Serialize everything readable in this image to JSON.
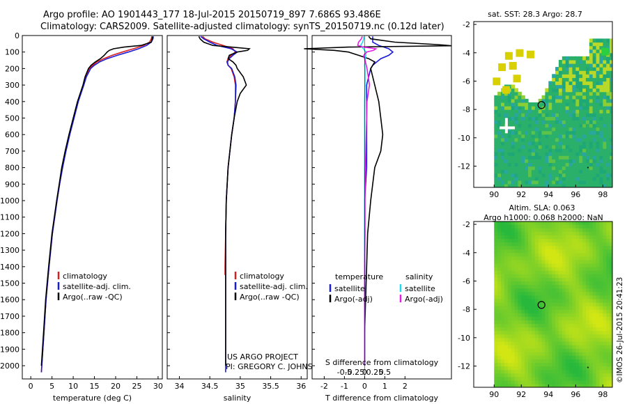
{
  "header": {
    "title_line1": "Argo profile: AO 1901443_177 18-Jul-2015 20150719_897 7.686S 93.486E",
    "title_line2": "Climatology: CARS2009. Satellite-adjusted climatology: synTS_20150719.nc (0.12d later)"
  },
  "colors": {
    "climatology": "#d62020",
    "satellite": "#1a1adb",
    "argo": "#000000",
    "satellite_sal": "#22d8f0",
    "argo_sal": "#e020e0"
  },
  "chart_data": [
    {
      "type": "line",
      "id": "temperature",
      "xlabel": "temperature (deg C)",
      "ylabel": "",
      "xlim": [
        -2,
        31
      ],
      "ylim": [
        2080,
        0
      ],
      "xticks": [
        "0",
        "5",
        "10",
        "15",
        "20",
        "25",
        "30"
      ],
      "xtick_values": [
        0,
        5,
        10,
        15,
        20,
        25,
        30
      ],
      "yticks": [
        "0",
        "100",
        "200",
        "300",
        "400",
        "500",
        "600",
        "700",
        "800",
        "900",
        "1000",
        "1100",
        "1200",
        "1300",
        "1400",
        "1500",
        "1600",
        "1700",
        "1800",
        "1900",
        "2000"
      ],
      "ytick_values": [
        0,
        100,
        200,
        300,
        400,
        500,
        600,
        700,
        800,
        900,
        1000,
        1100,
        1200,
        1300,
        1400,
        1500,
        1600,
        1700,
        1800,
        1900,
        2000
      ],
      "legend": [
        "climatology",
        "satellite-adj. clim.",
        "Argo(..raw -QC)"
      ],
      "series": [
        {
          "name": "climatology",
          "color_key": "climatology",
          "depth": [
            5,
            20,
            40,
            60,
            80,
            100,
            120,
            140,
            160,
            180,
            200,
            250,
            300,
            400,
            500,
            600,
            700,
            800,
            900,
            1000,
            1200,
            1400,
            1600,
            1800,
            2000,
            2040
          ],
          "values": [
            28.5,
            28.4,
            28.0,
            26.6,
            24.2,
            21.6,
            19.2,
            17.2,
            15.6,
            14.6,
            13.8,
            12.9,
            12.4,
            11.1,
            10.1,
            9.1,
            8.2,
            7.4,
            6.8,
            6.2,
            5.1,
            4.3,
            3.6,
            3.1,
            2.6,
            2.5
          ]
        },
        {
          "name": "satellite-adj. clim.",
          "color_key": "satellite",
          "depth": [
            5,
            20,
            40,
            60,
            80,
            100,
            120,
            140,
            160,
            180,
            200,
            250,
            300,
            400,
            500,
            600,
            700,
            800,
            900,
            1000,
            1200,
            1400,
            1600,
            1800,
            2000,
            2040
          ],
          "values": [
            28.9,
            28.8,
            28.4,
            27.3,
            25.4,
            23.0,
            20.4,
            18.0,
            16.2,
            15.0,
            14.1,
            13.1,
            12.5,
            11.2,
            10.2,
            9.2,
            8.3,
            7.5,
            6.8,
            6.2,
            5.1,
            4.3,
            3.6,
            3.1,
            2.6,
            2.5
          ]
        },
        {
          "name": "Argo(..raw -QC)",
          "color_key": "argo",
          "depth": [
            5,
            20,
            40,
            60,
            70,
            80,
            90,
            100,
            120,
            140,
            160,
            180,
            200,
            250,
            300,
            400,
            500,
            600,
            700,
            800,
            900,
            1000,
            1200,
            1400,
            1600,
            1800,
            2000
          ],
          "values": [
            28.7,
            28.6,
            28.4,
            26.0,
            22.0,
            19.5,
            18.5,
            18.0,
            17.3,
            16.4,
            15.2,
            14.2,
            13.6,
            12.8,
            12.3,
            11.0,
            10.0,
            9.0,
            8.1,
            7.3,
            6.7,
            6.1,
            5.0,
            4.2,
            3.5,
            3.0,
            2.5
          ]
        }
      ]
    },
    {
      "type": "line",
      "id": "salinity",
      "xlabel": "salinity",
      "xlim": [
        33.8,
        36.1
      ],
      "ylim": [
        2080,
        0
      ],
      "xticks": [
        "34",
        "34.5",
        "35",
        "35.5",
        "36"
      ],
      "xtick_values": [
        34,
        34.5,
        35,
        35.5,
        36
      ],
      "legend": [
        "climatology",
        "satellite-adj. clim.",
        "Argo(..raw -QC)"
      ],
      "annotations": [
        "US ARGO PROJECT",
        "PI: GREGORY C. JOHNSON"
      ],
      "series": [
        {
          "name": "climatology",
          "color_key": "climatology",
          "depth": [
            5,
            20,
            40,
            60,
            80,
            100,
            120,
            140,
            160,
            180,
            200,
            250,
            300,
            400,
            500,
            600,
            800,
            1000,
            1200,
            1400,
            1450
          ],
          "values": [
            34.38,
            34.42,
            34.55,
            34.72,
            34.88,
            34.92,
            34.85,
            34.8,
            34.78,
            34.8,
            34.85,
            34.9,
            34.92,
            34.92,
            34.9,
            34.86,
            34.8,
            34.77,
            34.76,
            34.75,
            34.75
          ]
        },
        {
          "name": "satellite-adj. clim.",
          "color_key": "satellite",
          "depth": [
            5,
            20,
            40,
            60,
            80,
            100,
            120,
            140,
            160,
            180,
            200,
            250,
            300,
            400,
            500,
            600,
            800,
            1000,
            1200,
            1400,
            1600,
            1800,
            2000,
            2040
          ],
          "values": [
            34.35,
            34.4,
            34.5,
            34.62,
            34.85,
            34.95,
            34.88,
            34.82,
            34.79,
            34.8,
            34.86,
            34.91,
            34.93,
            34.92,
            34.9,
            34.86,
            34.8,
            34.77,
            34.76,
            34.76,
            34.76,
            34.76,
            34.76,
            34.76
          ]
        },
        {
          "name": "Argo(..raw -QC)",
          "color_key": "argo",
          "depth": [
            5,
            20,
            40,
            60,
            70,
            80,
            90,
            100,
            120,
            140,
            160,
            180,
            200,
            250,
            300,
            350,
            400,
            500,
            600,
            800,
            1000,
            1200,
            1400,
            1600,
            1800,
            2000
          ],
          "values": [
            34.32,
            34.34,
            34.4,
            34.55,
            34.85,
            35.15,
            35.12,
            34.95,
            34.82,
            34.8,
            34.88,
            34.93,
            34.95,
            35.05,
            35.1,
            35.0,
            34.95,
            34.9,
            34.86,
            34.8,
            34.77,
            34.76,
            34.76,
            34.76,
            34.76,
            34.76
          ]
        }
      ]
    },
    {
      "type": "line",
      "id": "difference",
      "xlabel": "T difference from climatology",
      "xlabel_top": "S difference from climatology",
      "xlim": [
        -2.6,
        4.3
      ],
      "ylim": [
        2080,
        0
      ],
      "xticks": [
        "-2",
        "-1",
        "0",
        "1",
        "2"
      ],
      "xtick_values": [
        -2,
        -1,
        0,
        1,
        2
      ],
      "sticks": [
        "-0.5",
        "-0.25",
        "0",
        "0.25",
        "0.5"
      ],
      "stick_values": [
        -0.5,
        -0.25,
        0,
        0.25,
        0.5
      ],
      "legend_temperature": {
        "heading": "temperature",
        "items": [
          "satellite",
          "Argo(-adj)"
        ]
      },
      "legend_salinity": {
        "heading": "salinity",
        "items": [
          "satellite",
          "Argo(-adj)"
        ]
      },
      "series": [
        {
          "name": "T satellite",
          "color_key": "satellite",
          "depth": [
            5,
            20,
            40,
            60,
            80,
            100,
            120,
            140,
            160,
            180,
            200,
            300,
            400,
            600,
            800,
            1000,
            1400,
            2000
          ],
          "values": [
            0.4,
            0.4,
            0.4,
            0.7,
            1.2,
            1.4,
            1.2,
            0.8,
            0.6,
            0.4,
            0.3,
            0.1,
            0.1,
            0.1,
            0.1,
            0.0,
            0.0,
            0.0
          ]
        },
        {
          "name": "T Argo(-adj)",
          "color_key": "argo",
          "depth": [
            5,
            20,
            40,
            55,
            62,
            70,
            80,
            90,
            100,
            120,
            140,
            160,
            180,
            200,
            300,
            400,
            500,
            600,
            700,
            800,
            900,
            1000,
            1200,
            1400,
            1600,
            1800,
            2000
          ],
          "values": [
            0.2,
            0.3,
            1.5,
            3.6,
            4.3,
            -0.8,
            -3.0,
            -1.5,
            -0.8,
            -0.3,
            0.2,
            0.5,
            0.4,
            0.3,
            0.5,
            0.7,
            0.8,
            0.9,
            0.8,
            0.5,
            0.4,
            0.3,
            0.15,
            0.1,
            0.05,
            0.0,
            0.0
          ]
        },
        {
          "name": "S satellite",
          "color_key": "satellite_sal",
          "depth": [
            5,
            20,
            40,
            60,
            80,
            100,
            120,
            140,
            160,
            180,
            200,
            300,
            400,
            600,
            800,
            1000,
            1400,
            2000
          ],
          "values": [
            -0.03,
            -0.02,
            -0.05,
            -0.1,
            -0.03,
            0.03,
            0.03,
            0.02,
            0.01,
            0.0,
            0.01,
            0.01,
            0.0,
            0.0,
            0.0,
            0.0,
            0.0,
            0.0
          ]
        },
        {
          "name": "S Argo(-adj)",
          "color_key": "argo_sal",
          "depth": [
            5,
            20,
            40,
            60,
            70,
            80,
            90,
            100,
            120,
            140,
            160,
            180,
            200,
            250,
            300,
            400,
            500,
            600,
            700,
            800,
            1000,
            1200,
            1400,
            1600,
            2000
          ],
          "values": [
            -0.06,
            -0.08,
            -0.15,
            -0.17,
            -0.03,
            0.28,
            0.22,
            0.05,
            -0.02,
            0.0,
            0.02,
            0.04,
            0.06,
            0.09,
            0.12,
            0.06,
            0.05,
            0.04,
            0.03,
            0.02,
            0.01,
            0.01,
            0.0,
            0.0,
            0.0
          ]
        }
      ]
    },
    {
      "type": "heatmap",
      "id": "sst_map",
      "title": "sat. SST: 28.3  Argo: 28.7",
      "xlim": [
        88.5,
        98.7
      ],
      "ylim": [
        -13.5,
        -1.8
      ],
      "xticks": [
        "90",
        "92",
        "94",
        "96",
        "98"
      ],
      "xtick_values": [
        90,
        92,
        94,
        96,
        98
      ],
      "yticks": [
        "-2",
        "-4",
        "-6",
        "-8",
        "-10",
        "-12"
      ],
      "ytick_values": [
        -2,
        -4,
        -6,
        -8,
        -10,
        -12
      ],
      "marker": {
        "lon": 93.486,
        "lat": -7.686
      }
    },
    {
      "type": "heatmap",
      "id": "sla_map",
      "title": "Altim. SLA: 0.063",
      "subtitle": "Argo h1000: 0.068 h2000: NaN",
      "xlim": [
        88.5,
        98.7
      ],
      "ylim": [
        -13.5,
        -1.8
      ],
      "xticks": [
        "90",
        "92",
        "94",
        "96",
        "98"
      ],
      "xtick_values": [
        90,
        92,
        94,
        96,
        98
      ],
      "yticks": [
        "-2",
        "-4",
        "-6",
        "-8",
        "-10",
        "-12"
      ],
      "ytick_values": [
        -2,
        -4,
        -6,
        -8,
        -10,
        -12
      ],
      "marker": {
        "lon": 93.486,
        "lat": -7.686
      }
    }
  ],
  "footer": {
    "credit": "©IMOS 26-Jul-2015 20:41:23"
  }
}
